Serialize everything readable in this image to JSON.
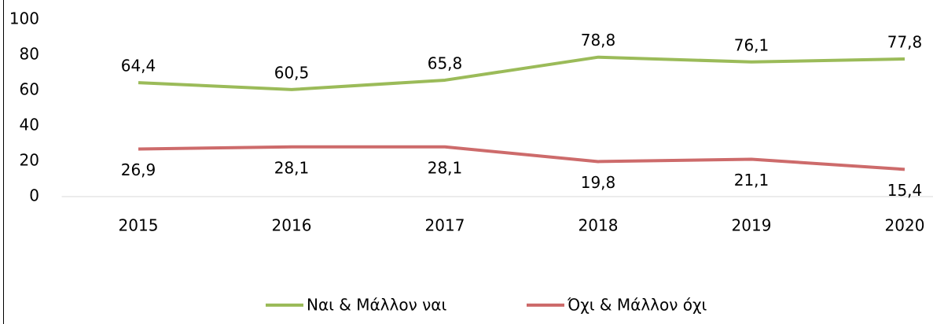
{
  "chart_data": {
    "type": "line",
    "categories": [
      "2015",
      "2016",
      "2017",
      "2018",
      "2019",
      "2020"
    ],
    "series": [
      {
        "name": "Ναι & Μάλλον ναι",
        "color": "#9bbb59",
        "values": [
          64.4,
          60.5,
          65.8,
          78.8,
          76.1,
          77.8
        ],
        "value_labels": [
          "64,4",
          "60,5",
          "65,8",
          "78,8",
          "76,1",
          "77,8"
        ]
      },
      {
        "name": "Όχι & Μάλλον όχι",
        "color": "#cd6b6b",
        "values": [
          26.9,
          28.1,
          28.1,
          19.8,
          21.1,
          15.4
        ],
        "value_labels": [
          "26,9",
          "28,1",
          "28,1",
          "19,8",
          "21,1",
          "15,4"
        ]
      }
    ],
    "ylim": [
      0,
      100
    ],
    "yticks": [
      0,
      20,
      40,
      60,
      80,
      100
    ],
    "grid": false,
    "legend": "bottom"
  }
}
